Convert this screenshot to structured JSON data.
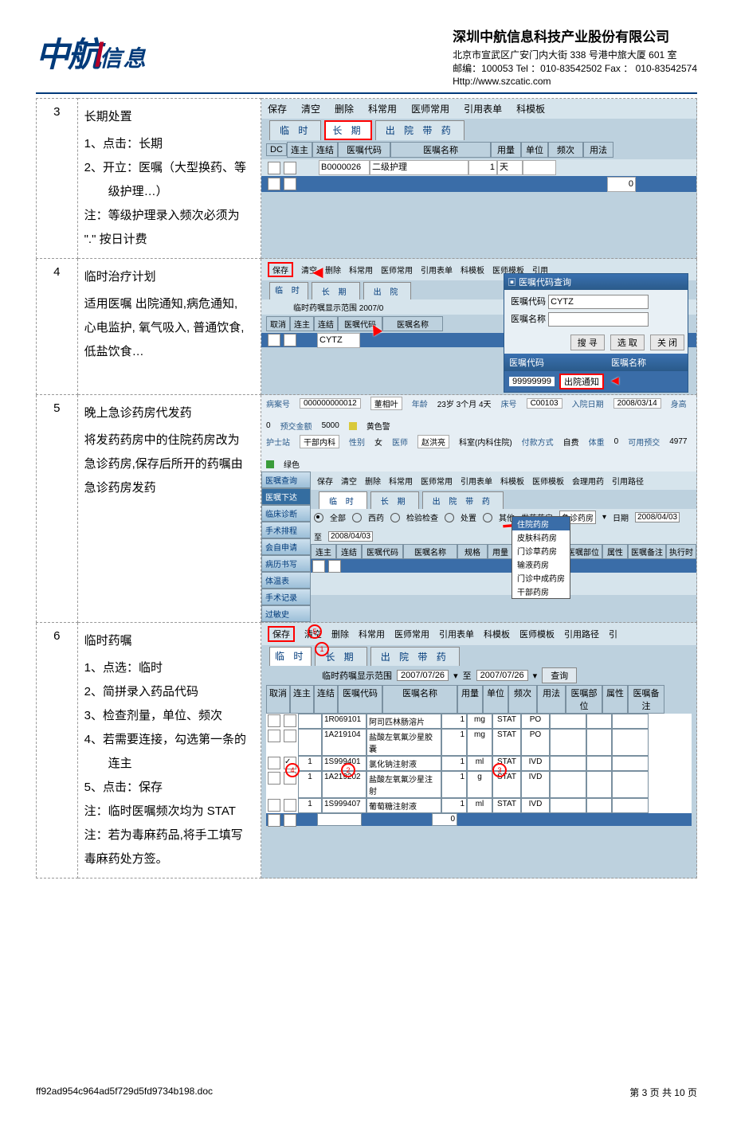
{
  "header": {
    "logo_main": "中航",
    "logo_sub": "信息",
    "company_name": "深圳中航信息科技产业股份有限公司",
    "address": "北京市宣武区广安门内大街 338 号港中旅大厦 601 室",
    "mail_line": "邮编：100053   Tel ：010-83542502   Fax ： 010-83542574",
    "url_line": "Http://www.szcatic.com"
  },
  "rows": [
    {
      "num": "3",
      "title": "长期处置",
      "lines": [
        "1、点击：长期",
        "2、开立：医嘱（大型换药、等",
        "　　级护理…）",
        "",
        "注：等级护理录入频次必须为",
        "\".\" 按日计费"
      ]
    },
    {
      "num": "4",
      "title": "临时治疗计划",
      "lines": [
        "适用医嘱 出院通知,病危通知,",
        "心电监护, 氧气吸入, 普通饮食,",
        "低盐饮食…"
      ]
    },
    {
      "num": "5",
      "title": "晚上急诊药房代发药",
      "lines": [
        "",
        "将发药药房中的住院药房改为",
        "急诊药房,保存后所开的药嘱由",
        "急诊药房发药"
      ]
    },
    {
      "num": "6",
      "title": "临时药嘱",
      "lines": [
        "1、点选：临时",
        "2、简拼录入药品代码",
        "3、检查剂量，单位、频次",
        "4、若需要连接，勾选第一条的",
        "　　连主",
        "5、点击：保存",
        "注：临时医嘱频次均为 STAT",
        "注：若为毒麻药品,将手工填写",
        "毒麻药处方签。"
      ]
    }
  ],
  "ui3": {
    "toolbar": [
      "保存",
      "清空",
      "删除",
      "科常用",
      "医师常用",
      "引用表单",
      "科模板"
    ],
    "tabs": [
      "临 时",
      "长 期",
      "出 院 带 药"
    ],
    "active_tab": "长 期",
    "headers": [
      "DC",
      "连主",
      "连结",
      "医嘱代码",
      "医嘱名称",
      "用量",
      "单位",
      "频次",
      "用法"
    ],
    "row": {
      "code": "B0000026",
      "name": "二级护理",
      "qty": "1",
      "unit": "天",
      "freq": ""
    }
  },
  "ui4": {
    "toolbar": [
      "保存",
      "清空",
      "删除",
      "科常用",
      "医师常用",
      "引用表单",
      "科模板",
      "医师模板",
      "引用"
    ],
    "tabs": [
      "临 时",
      "长 期",
      "出 院"
    ],
    "active_tab": "临 时",
    "range_label": "临时药嘱显示范围",
    "range_date": "2007/0",
    "grid_headers": [
      "取消",
      "连主",
      "连结",
      "医嘱代码",
      "医嘱名称"
    ],
    "grid_code_value": "CYTZ",
    "modal_title": "医嘱代码查询",
    "modal_code_label": "医嘱代码",
    "modal_code_value": "CYTZ",
    "modal_name_label": "医嘱名称",
    "modal_btns": [
      "搜 寻",
      "选 取",
      "关 闭"
    ],
    "result_code_label": "医嘱代码",
    "result_code_value": "99999999",
    "result_name_label": "医嘱名称",
    "result_name_value": "出院通知"
  },
  "ui5": {
    "top_fields": [
      [
        "病案号",
        "000000000012"
      ],
      [
        "",
        "董相叶"
      ],
      [
        "年龄",
        "23岁 3个月 4天"
      ],
      [
        "床号",
        "C00103"
      ],
      [
        "入院日期",
        "2008/03/14"
      ],
      [
        "身高",
        "0"
      ],
      [
        "预交金额",
        "5000"
      ]
    ],
    "top_fields2": [
      [
        "护士站",
        "干部内科"
      ],
      [
        "性别",
        "女"
      ],
      [
        "医师",
        "赵洪亮"
      ],
      [
        "",
        "科室(内科住院)"
      ],
      [
        "付款方式",
        "自费"
      ],
      [
        "体重",
        "0"
      ],
      [
        "可用预交",
        "4977"
      ]
    ],
    "top_right": [
      [
        "黄色警",
        "#d9c93a"
      ],
      [
        "绿色",
        "#3a9c3a"
      ]
    ],
    "sidebar": [
      "医嘱查询",
      "医嘱下达",
      "临床诊断",
      "手术排程",
      "会自申请",
      "病历书写",
      "体温表",
      "手术记录",
      "过敏史"
    ],
    "sidebar_active": "医嘱下达",
    "toolbar": [
      "保存",
      "清空",
      "删除",
      "科常用",
      "医师常用",
      "引用表单",
      "科模板",
      "医师模板",
      "会理用药",
      "引用路径"
    ],
    "tabs": [
      "临 时",
      "长 期",
      "出 院 带 药"
    ],
    "active_tab": "临 时",
    "filter_radios": [
      "全部",
      "西药",
      "检验检查",
      "处置",
      "其他"
    ],
    "filter_pharm_label": "发药药房",
    "filter_pharm_value": "急诊药房",
    "date_label": "日期",
    "date_from": "2008/04/03",
    "date_to": "至",
    "date_to_val": "2008/04/03",
    "dropdown": [
      "住院药房",
      "皮肤科药房",
      "门诊草药房",
      "输液药房",
      "门诊中成药房",
      "干部药房"
    ],
    "dropdown_selected": "住院药房",
    "grid_headers": [
      "连主",
      "连结",
      "医嘱代码",
      "医嘱名称",
      "规格",
      "用量",
      "单位",
      "频次",
      "医嘱部位",
      "属性",
      "医嘱备注",
      "执行时"
    ]
  },
  "ui6": {
    "toolbar": [
      "保存",
      "清空",
      "删除",
      "科常用",
      "医师常用",
      "引用表单",
      "科模板",
      "医师模板",
      "引用路径",
      "引"
    ],
    "tabs": [
      "临 时",
      "长 期",
      "出 院 带 药"
    ],
    "active_tab": "临 时",
    "range_label": "临时药嘱显示范围",
    "date_from": "2007/07/26",
    "date_mid": "至",
    "date_to": "2007/07/26",
    "query_btn": "查询",
    "headers": [
      "取消",
      "连主",
      "连结",
      "医嘱代码",
      "医嘱名称",
      "用量",
      "单位",
      "频次",
      "用法",
      "医嘱部位",
      "属性",
      "医嘱备注"
    ],
    "rows": [
      {
        "chk": "",
        "main": "",
        "code": "1R069101",
        "name": "阿司匹林肠溶片",
        "qty": "1",
        "unit": "mg",
        "freq": "STAT",
        "use": "PO"
      },
      {
        "chk": "",
        "main": "",
        "code": "1A219104",
        "name": "盐酸左氧氟沙星胶囊",
        "qty": "1",
        "unit": "mg",
        "freq": "STAT",
        "use": "PO"
      },
      {
        "chk": "",
        "main": "✓",
        "code": "1S999401",
        "name": "氯化钠注射液",
        "qty": "1",
        "unit": "ml",
        "freq": "STAT",
        "use": "IVD"
      },
      {
        "chk": "",
        "main": "",
        "code": "1A219202",
        "name": "盐酸左氧氟沙星注射",
        "qty": "1",
        "unit": "g",
        "freq": "STAT",
        "use": "IVD"
      },
      {
        "chk": "",
        "main": "",
        "code": "1S999407",
        "name": "葡萄糖注射液",
        "qty": "1",
        "unit": "ml",
        "freq": "STAT",
        "use": "IVD"
      }
    ],
    "circles": [
      "5",
      "1",
      "4",
      "2",
      "3"
    ]
  },
  "footer": {
    "file": "ff92ad954c964ad5f729d5fd9734b198.doc",
    "page": "第 3 页 共 10 页"
  },
  "colors": {
    "brand_blue": "#003a7a",
    "bg_panel": "#bdd1de",
    "bg_light": "#d6e4ec",
    "red": "#ff0000"
  }
}
